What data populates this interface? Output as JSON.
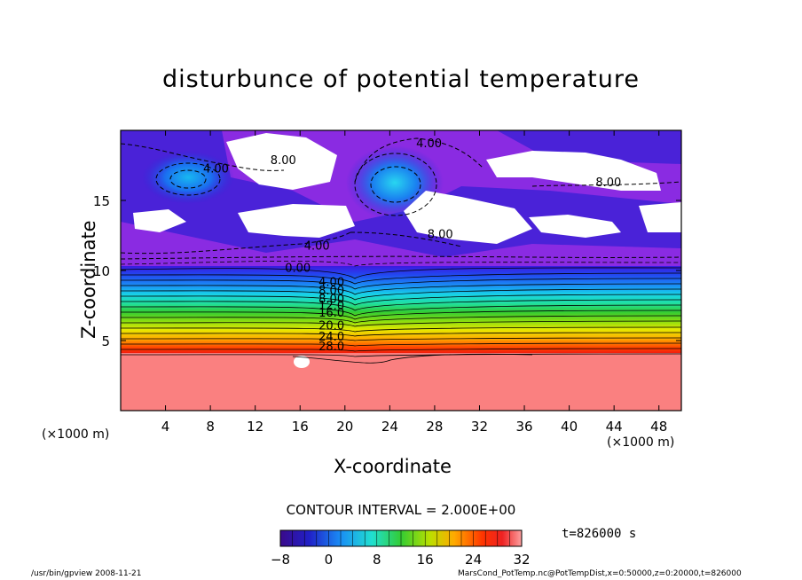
{
  "chart_data": {
    "type": "heatmap",
    "title": "disturbunce of potential temperature",
    "xlabel": "X-coordinate",
    "ylabel": "Z-coordinate",
    "x_unit": "(×1000 m)",
    "xlim": [
      0,
      50
    ],
    "ylim": [
      0,
      20
    ],
    "x_ticks": [
      4,
      8,
      12,
      16,
      20,
      24,
      28,
      32,
      36,
      40,
      44,
      48
    ],
    "y_ticks": [
      5,
      10,
      15
    ],
    "contour_labels": [
      {
        "text": "4.00",
        "x": 27.5,
        "z": 18.8
      },
      {
        "text": "8.00",
        "x": 14.5,
        "z": 17.6
      },
      {
        "text": "4.00",
        "x": 8.5,
        "z": 17.0
      },
      {
        "text": "8.00",
        "x": 43.5,
        "z": 16.0
      },
      {
        "text": "8.00",
        "x": 28.5,
        "z": 12.3
      },
      {
        "text": "4.00",
        "x": 17.5,
        "z": 11.5
      },
      {
        "text": "0.00",
        "x": 15.8,
        "z": 9.9
      },
      {
        "text": "4.00",
        "x": 18.8,
        "z": 8.9
      },
      {
        "text": "8.00",
        "x": 18.8,
        "z": 8.3
      },
      {
        "text": "8.00",
        "x": 18.8,
        "z": 7.7
      },
      {
        "text": "12.0",
        "x": 18.8,
        "z": 7.2
      },
      {
        "text": "16.0",
        "x": 18.8,
        "z": 6.7
      },
      {
        "text": "20.0",
        "x": 18.8,
        "z": 5.8
      },
      {
        "text": "24.0",
        "x": 18.8,
        "z": 5.0
      },
      {
        "text": "28.0",
        "x": 18.8,
        "z": 4.3
      }
    ],
    "contour_interval": "CONTOUR INTERVAL = 2.000E+00",
    "colorbar": {
      "ticks": [
        -8,
        0,
        8,
        16,
        24,
        32
      ],
      "min": -8,
      "max": 32
    },
    "colors": {
      "purple": "#8a2be2",
      "violet": "#9b30d8",
      "blue": "#2222dd",
      "lightblue": "#18b0f0",
      "cyan": "#20e0e0",
      "green": "#33cc33",
      "yellow": "#e8e800",
      "orange": "#ff8800",
      "red": "#ee1111",
      "salmon": "#fa8080"
    }
  },
  "time_label": "t=826000 s",
  "footer": {
    "left": "/usr/bin/gpview   2008-11-21",
    "right": "MarsCond_PotTemp.nc@PotTempDist,x=0:50000,z=0:20000,t=826000"
  }
}
